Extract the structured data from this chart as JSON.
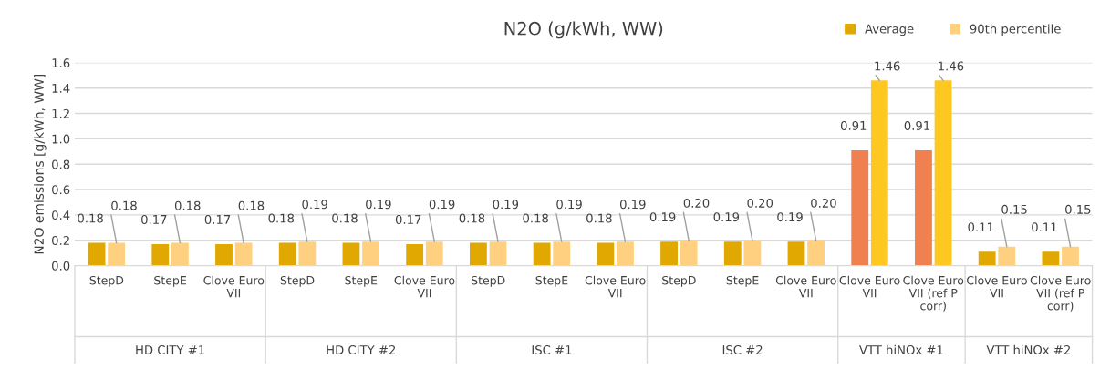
{
  "chart_data": {
    "type": "bar",
    "title": "N2O (g/kWh, WW)",
    "ylabel": "N2O emissions [g/kWh, WW]",
    "categories": [
      "StepD",
      "StepE",
      "Clove Euro VII",
      "StepD",
      "StepE",
      "Clove Euro VII",
      "StepD",
      "StepE",
      "Clove Euro VII",
      "StepD",
      "StepE",
      "Clove Euro VII",
      "Clove Euro VII",
      "Clove Euro VII (ref P corr)",
      "Clove Euro VII",
      "Clove Euro VII (ref P corr)"
    ],
    "series": [
      {
        "name": "Average",
        "color": "#e0a800",
        "colors": [
          "#e0a800",
          "#e0a800",
          "#e0a800",
          "#e0a800",
          "#e0a800",
          "#e0a800",
          "#e0a800",
          "#e0a800",
          "#e0a800",
          "#e0a800",
          "#e0a800",
          "#e0a800",
          "#f08050",
          "#f08050",
          "#e0a800",
          "#e0a800"
        ],
        "values": [
          0.18,
          0.17,
          0.17,
          0.18,
          0.18,
          0.17,
          0.18,
          0.18,
          0.18,
          0.19,
          0.19,
          0.19,
          0.91,
          0.91,
          0.11,
          0.11
        ],
        "value_labels": [
          "0.18",
          "0.17",
          "0.17",
          "0.18",
          "0.18",
          "0.17",
          "0.18",
          "0.18",
          "0.18",
          "0.19",
          "0.19",
          "0.19",
          "0.91",
          "0.91",
          "0.11",
          "0.11"
        ]
      },
      {
        "name": "90th percentile",
        "color": "#ffd080",
        "colors": [
          "#ffd080",
          "#ffd080",
          "#ffd080",
          "#ffd080",
          "#ffd080",
          "#ffd080",
          "#ffd080",
          "#ffd080",
          "#ffd080",
          "#ffd080",
          "#ffd080",
          "#ffd080",
          "#ffc820",
          "#ffc820",
          "#ffd080",
          "#ffd080"
        ],
        "values": [
          0.18,
          0.18,
          0.18,
          0.19,
          0.19,
          0.19,
          0.19,
          0.19,
          0.19,
          0.2,
          0.2,
          0.2,
          1.46,
          1.46,
          0.15,
          0.15
        ],
        "value_labels": [
          "0.18",
          "0.18",
          "0.18",
          "0.19",
          "0.19",
          "0.19",
          "0.19",
          "0.19",
          "0.19",
          "0.20",
          "0.20",
          "0.20",
          "1.46",
          "1.46",
          "0.15",
          "0.15"
        ]
      }
    ],
    "annotations": [
      "HD CITY #1",
      "HD CITY #2",
      "ISC #1",
      "ISC #2",
      "VTT hiNOx #1",
      "VTT hiNOx #2"
    ],
    "ylim": [
      0,
      1.6
    ],
    "yticks": [
      {
        "value": 0,
        "label": "0.0"
      },
      {
        "value": 0.2,
        "label": "0.2"
      },
      {
        "value": 0.4,
        "label": "0.4"
      },
      {
        "value": 0.6,
        "label": "0.6"
      },
      {
        "value": 0.8,
        "label": "0.8"
      },
      {
        "value": 1.0,
        "label": "1.0"
      },
      {
        "value": 1.2,
        "label": "1.2"
      },
      {
        "value": 1.4,
        "label": "1.4"
      },
      {
        "value": 1.6,
        "label": "1.6"
      }
    ],
    "grid": "y",
    "legend": "top right"
  }
}
